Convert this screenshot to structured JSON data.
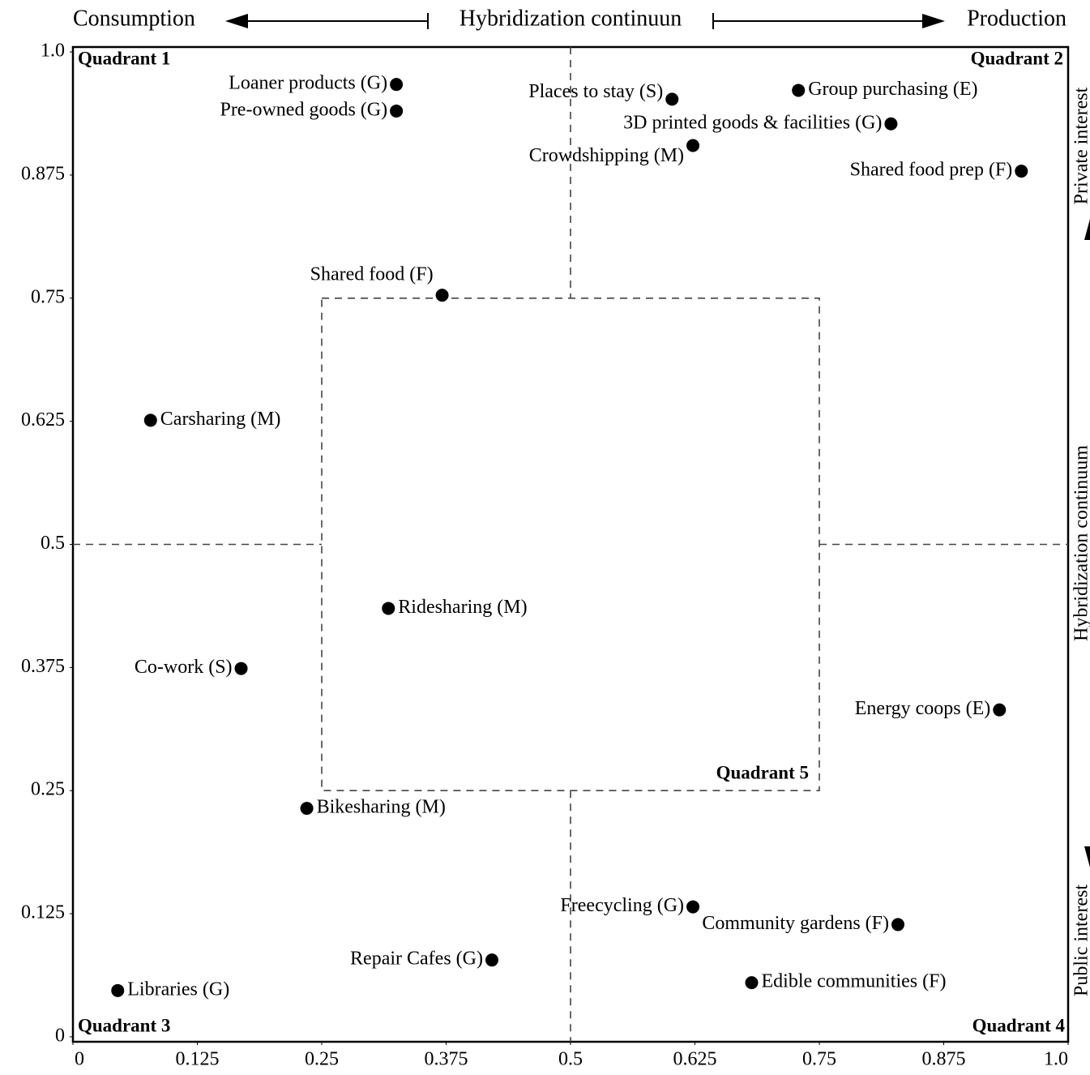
{
  "chart_data": {
    "type": "scatter",
    "annotations": {
      "consumption": "Consumption",
      "continuum": "Hybridization continuun",
      "production": "Production",
      "quadrant_1": "Quadrant 1",
      "quadrant_2": "Quadrant 2",
      "quadrant_3": "Quadrant 3",
      "quadrant_4": "Quadrant 4",
      "quadrant_5": "Quadrant 5",
      "public_interest": "Public interest",
      "vertical_continuum": "Hybridization continuum",
      "private_interest": "Private interest"
    },
    "labels": [
      "Loaner products (G)",
      "Pre-owned goods (G)",
      "Places to stay (S)",
      "Group purchasing (E)",
      "3D printed goods & facilities (G)",
      "Crowdshipping (M)",
      "Shared food prep (F)",
      "Shared food (F)",
      "Carsharing (M)",
      "Ridesharing (M)",
      "Co-work (S)",
      "Energy coops (E)",
      "Bikesharing (M)",
      "Freecycling (G)",
      "Community gardens (F)",
      "Repair Cafes (G)",
      "Libraries (G)",
      "Edible communities (F)"
    ],
    "x": [
      0.325,
      0.325,
      0.602,
      0.729,
      0.822,
      0.623,
      0.953,
      0.371,
      0.078,
      0.317,
      0.169,
      0.931,
      0.235,
      0.623,
      0.829,
      0.421,
      0.045,
      0.682
    ],
    "y": [
      0.967,
      0.94,
      0.952,
      0.961,
      0.927,
      0.905,
      0.879,
      0.753,
      0.626,
      0.435,
      0.374,
      0.332,
      0.232,
      0.132,
      0.114,
      0.078,
      0.047,
      0.055
    ],
    "color": "#000000",
    "xlim": [
      0,
      1
    ],
    "ylim": [
      -0.005,
      1.005
    ],
    "xticks": [
      0,
      0.125,
      0.25,
      0.375,
      0.5,
      0.625,
      0.75,
      0.875,
      {
        "value": 1,
        "label": "1.0"
      }
    ],
    "yticks": [
      0,
      0.125,
      0.25,
      0.375,
      0.5,
      0.625,
      0.75,
      0.875,
      {
        "value": 1,
        "label": "1.0"
      }
    ]
  }
}
